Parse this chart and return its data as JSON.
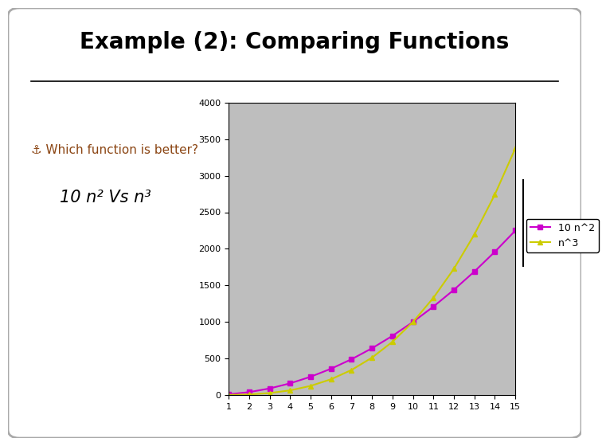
{
  "title": "Example (2): Comparing Functions",
  "title_fontsize": 20,
  "title_fontweight": "bold",
  "left_text_line1": "⚓ Which function is better?",
  "left_text_line2": "10 n² Vs n³",
  "x_values": [
    1,
    2,
    3,
    4,
    5,
    6,
    7,
    8,
    9,
    10,
    11,
    12,
    13,
    14,
    15
  ],
  "y1_values": [
    10,
    40,
    90,
    160,
    250,
    360,
    490,
    640,
    810,
    1000,
    1210,
    1440,
    1690,
    1960,
    2250
  ],
  "y2_values": [
    1,
    8,
    27,
    64,
    125,
    216,
    343,
    512,
    729,
    1000,
    1331,
    1728,
    2197,
    2744,
    3375
  ],
  "line1_color": "#CC00CC",
  "line2_color": "#CCCC00",
  "legend_label1": "10 n^2",
  "legend_label2": "n^3",
  "ylim": [
    0,
    4000
  ],
  "xlim": [
    1,
    15
  ],
  "plot_bg_color": "#BEBEBE",
  "fig_bg_color": "#FFFFFF",
  "marker1": "s",
  "marker2": "^"
}
